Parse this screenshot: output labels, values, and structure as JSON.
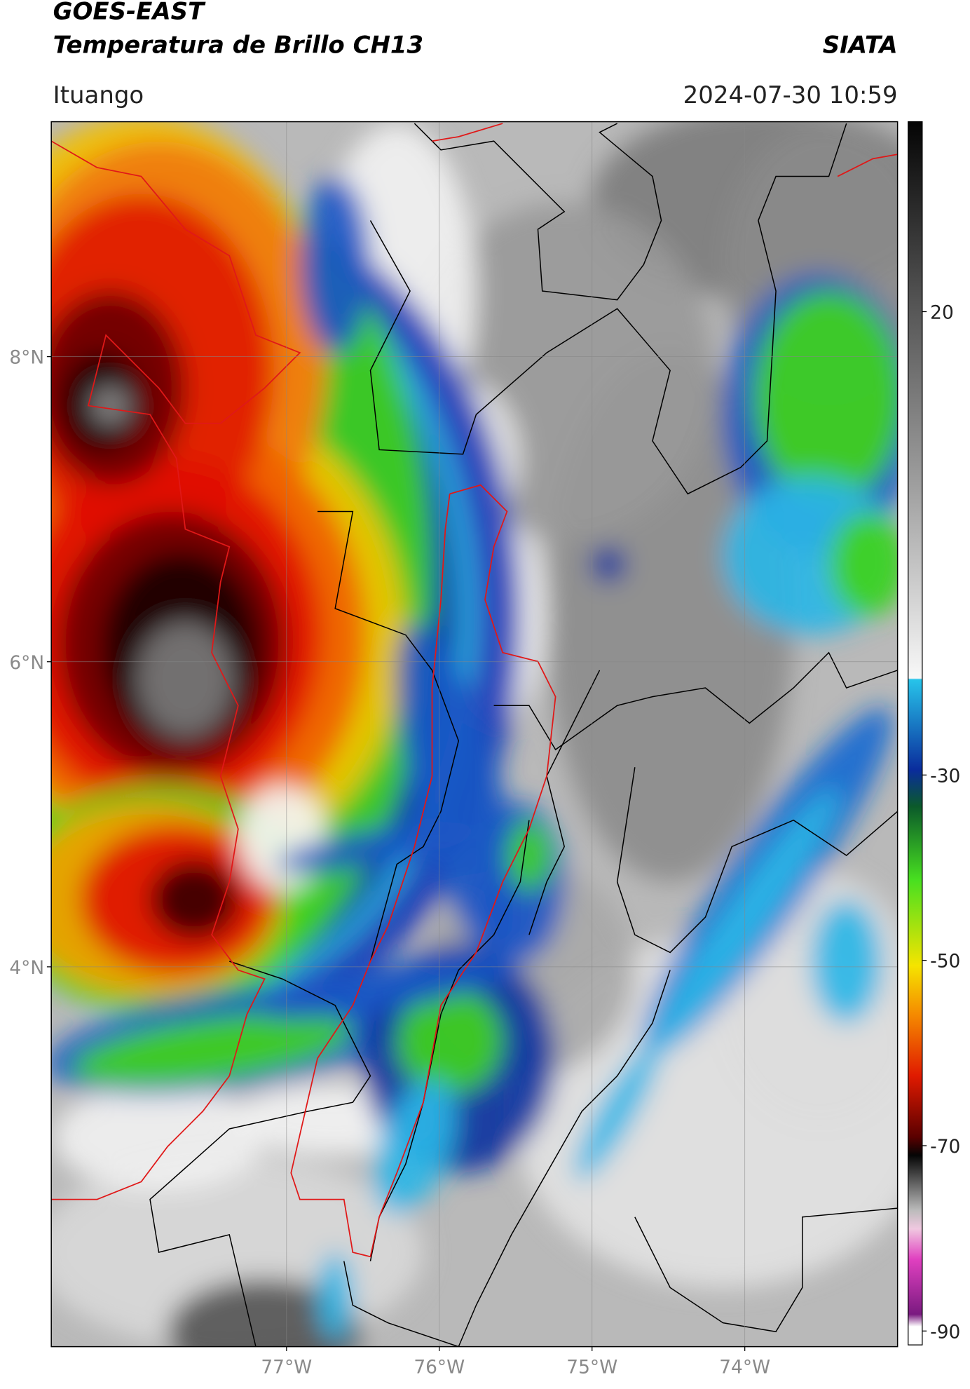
{
  "header": {
    "title": "GOES-EAST",
    "subtitle": "Temperatura de Brillo CH13",
    "agency": "SIATA",
    "location": "Ituango",
    "timestamp": "2024-07-30 10:59"
  },
  "map": {
    "xlim": [
      -78.54,
      -73.0
    ],
    "ylim": [
      1.51,
      9.54
    ],
    "xticks": [
      {
        "value": -77,
        "label": "77°W"
      },
      {
        "value": -76,
        "label": "76°W"
      },
      {
        "value": -75,
        "label": "75°W"
      },
      {
        "value": -74,
        "label": "74°W"
      }
    ],
    "yticks": [
      {
        "value": 8,
        "label": "8°N"
      },
      {
        "value": 6,
        "label": "6°N"
      },
      {
        "value": 4,
        "label": "4°N"
      }
    ],
    "grid": true
  },
  "colorbar": {
    "clim": [
      -91.5,
      40.5
    ],
    "ticks": [
      20,
      -30,
      -50,
      -70,
      -90
    ]
  }
}
